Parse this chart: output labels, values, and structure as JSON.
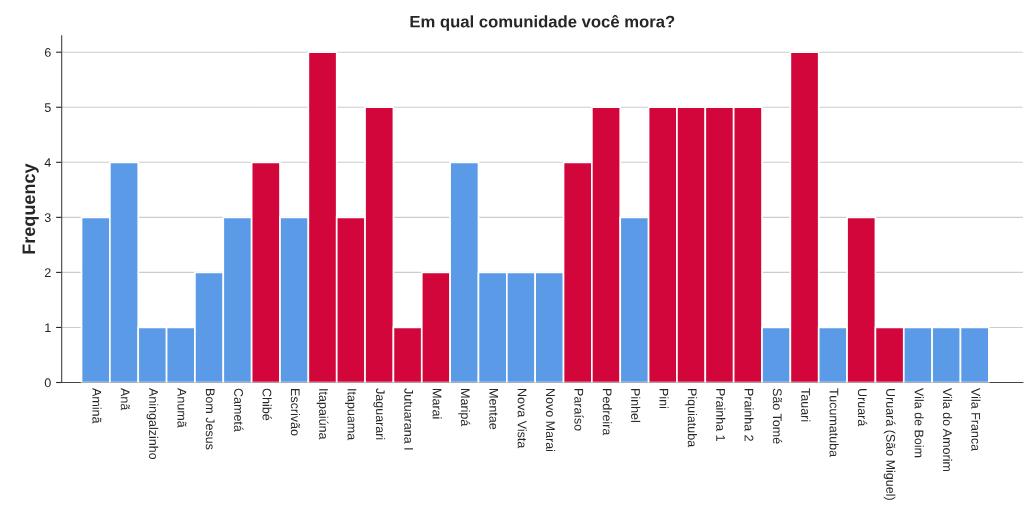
{
  "chart_data": {
    "type": "bar",
    "title": "Em qual comunidade você mora?",
    "ylabel": "Frequency",
    "categories": [
      "Aminã",
      "Anã",
      "Aningalzinho",
      "Anumã",
      "Bom Jesus",
      "Cametá",
      "Chibé",
      "Escrivão",
      "Itapaiúna",
      "Itapuama",
      "Jaguarari",
      "Jutuarana I",
      "Marai",
      "Maripá",
      "Mentae",
      "Nova Vista",
      "Novo Marai",
      "Paraíso",
      "Pedreira",
      "Pinhel",
      "Pini",
      "Piquiatuba",
      "Prainha 1",
      "Prainha 2",
      "São Tomé",
      "Tauari",
      "Tucumatuba",
      "Uruará",
      "Uruará (São Miguel)",
      "Vila de Boim",
      "Vila do Amorim",
      "Vila Franca"
    ],
    "values": [
      3,
      4,
      1,
      1,
      2,
      3,
      4,
      3,
      6,
      3,
      5,
      1,
      2,
      4,
      2,
      2,
      2,
      4,
      5,
      3,
      5,
      5,
      5,
      5,
      1,
      6,
      1,
      3,
      1,
      1,
      1,
      1
    ],
    "colors": [
      "#5b9ae6",
      "#5b9ae6",
      "#5b9ae6",
      "#5b9ae6",
      "#5b9ae6",
      "#5b9ae6",
      "#d2063a",
      "#5b9ae6",
      "#d2063a",
      "#d2063a",
      "#d2063a",
      "#d2063a",
      "#d2063a",
      "#5b9ae6",
      "#5b9ae6",
      "#5b9ae6",
      "#5b9ae6",
      "#d2063a",
      "#d2063a",
      "#5b9ae6",
      "#d2063a",
      "#d2063a",
      "#d2063a",
      "#d2063a",
      "#5b9ae6",
      "#d2063a",
      "#5b9ae6",
      "#d2063a",
      "#d2063a",
      "#5b9ae6",
      "#5b9ae6",
      "#5b9ae6"
    ],
    "ylim": [
      0,
      6.3
    ],
    "yticks": [
      0,
      1,
      2,
      3,
      4,
      5,
      6
    ],
    "grid": "y",
    "legend": false
  }
}
